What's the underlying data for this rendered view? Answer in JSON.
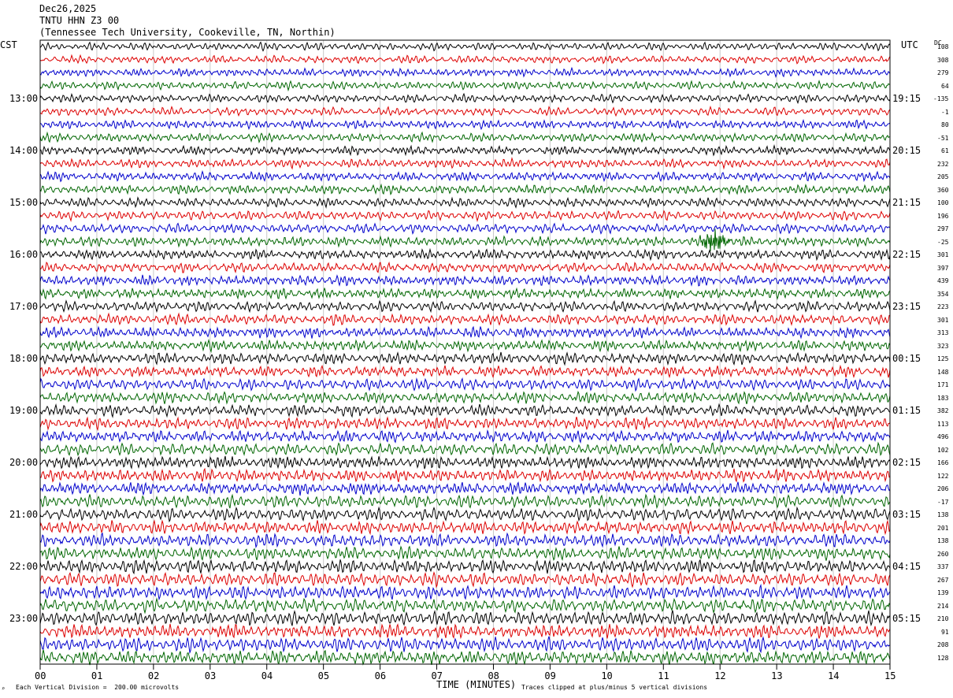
{
  "header": {
    "date": "Dec26,2025",
    "station": "TNTU HHN Z3 00",
    "location": "(Tennessee Tech University, Cookeville, TN, Northin)"
  },
  "left_tz": "CST",
  "right_tz": "UTC",
  "dc_label": "DC",
  "footer": {
    "scale_note": "Each Vertical Division =  200.00 microvolts",
    "clip_note": "Traces clipped at plus/minus 5 vertical divisions",
    "corner_mark": "⌕"
  },
  "chart_data": {
    "type": "line",
    "xlabel": "TIME (MINUTES)",
    "xlim": [
      0,
      15
    ],
    "x_ticks": [
      "00",
      "01",
      "02",
      "03",
      "04",
      "05",
      "06",
      "07",
      "08",
      "09",
      "10",
      "11",
      "12",
      "13",
      "14",
      "15"
    ],
    "left_hour_labels": [
      "13:00",
      "14:00",
      "15:00",
      "16:00",
      "17:00",
      "18:00",
      "19:00",
      "20:00",
      "21:00",
      "22:00",
      "23:00"
    ],
    "right_hour_labels": [
      "19:15",
      "20:15",
      "21:15",
      "22:15",
      "23:15",
      "00:15",
      "01:15",
      "02:15",
      "03:15",
      "04:15",
      "05:15"
    ],
    "trace_colors": [
      "#000000",
      "#dd0000",
      "#0000cc",
      "#006600"
    ],
    "dc_offsets": [
      "108",
      "308",
      "279",
      "64",
      "-135",
      "-1",
      "80",
      "-51",
      "61",
      "232",
      "205",
      "360",
      "100",
      "196",
      "297",
      "-25",
      "301",
      "397",
      "439",
      "354",
      "223",
      "301",
      "313",
      "323",
      "125",
      "148",
      "171",
      "183",
      "382",
      "113",
      "496",
      "102",
      "166",
      "122",
      "206",
      "-17",
      "138",
      "201",
      "138",
      "260",
      "337",
      "267",
      "139",
      "214",
      "210",
      "91",
      "208",
      "128"
    ],
    "event": {
      "trace_index": 15,
      "minute": 11.9
    }
  }
}
